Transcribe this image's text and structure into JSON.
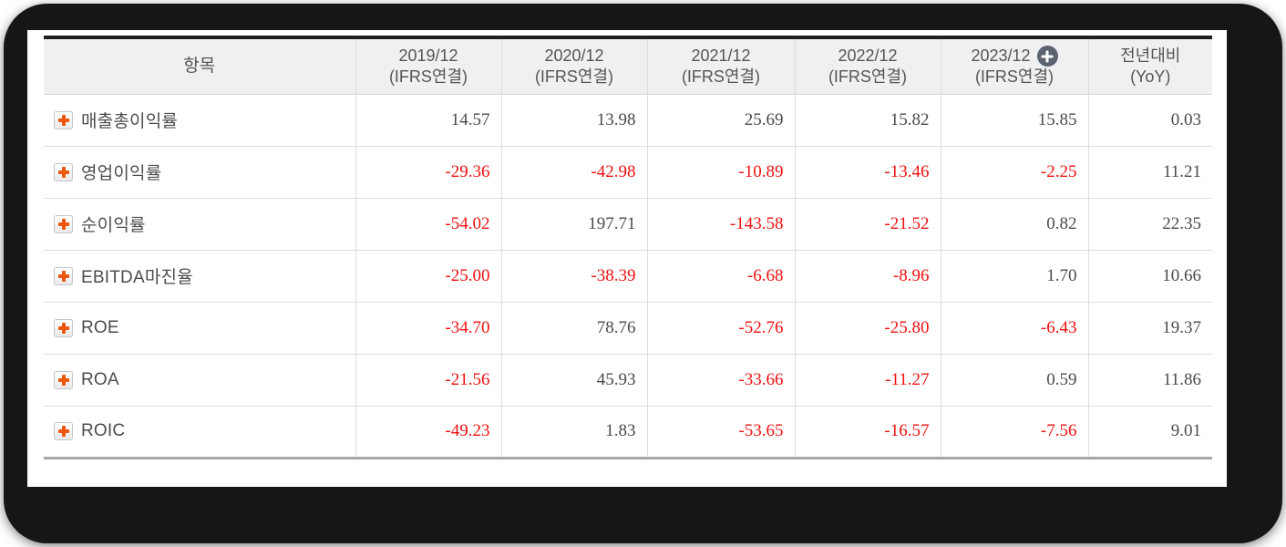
{
  "table": {
    "columns": {
      "item_header": "항목",
      "periods": [
        {
          "label": "2019/12",
          "basis": "(IFRS연결)"
        },
        {
          "label": "2020/12",
          "basis": "(IFRS연결)"
        },
        {
          "label": "2021/12",
          "basis": "(IFRS연결)"
        },
        {
          "label": "2022/12",
          "basis": "(IFRS연결)"
        },
        {
          "label": "2023/12",
          "basis": "(IFRS연결)",
          "has_add_button": true
        }
      ],
      "yoy": {
        "line1": "전년대비",
        "line2": "(YoY)"
      }
    },
    "rows": [
      {
        "label": "매출총이익률",
        "values": [
          "14.57",
          "13.98",
          "25.69",
          "15.82",
          "15.85",
          "0.03"
        ]
      },
      {
        "label": "영업이익률",
        "values": [
          "-29.36",
          "-42.98",
          "-10.89",
          "-13.46",
          "-2.25",
          "11.21"
        ]
      },
      {
        "label": "순이익률",
        "values": [
          "-54.02",
          "197.71",
          "-143.58",
          "-21.52",
          "0.82",
          "22.35"
        ]
      },
      {
        "label": "EBITDA마진율",
        "values": [
          "-25.00",
          "-38.39",
          "-6.68",
          "-8.96",
          "1.70",
          "10.66"
        ]
      },
      {
        "label": "ROE",
        "values": [
          "-34.70",
          "78.76",
          "-52.76",
          "-25.80",
          "-6.43",
          "19.37"
        ]
      },
      {
        "label": "ROA",
        "values": [
          "-21.56",
          "45.93",
          "-33.66",
          "-11.27",
          "0.59",
          "11.86"
        ]
      },
      {
        "label": "ROIC",
        "values": [
          "-49.23",
          "1.83",
          "-53.65",
          "-16.57",
          "-7.56",
          "9.01"
        ]
      }
    ]
  },
  "icons": {
    "row_expand": "plus-icon",
    "header_add": "plus-circle-icon"
  },
  "colors": {
    "negative_value": "#ee1111",
    "positive_value": "#4a4a4a",
    "expand_plus": "#ed560e",
    "add_circle_bg": "#5c6370",
    "header_bg": "#f0f0f0"
  }
}
